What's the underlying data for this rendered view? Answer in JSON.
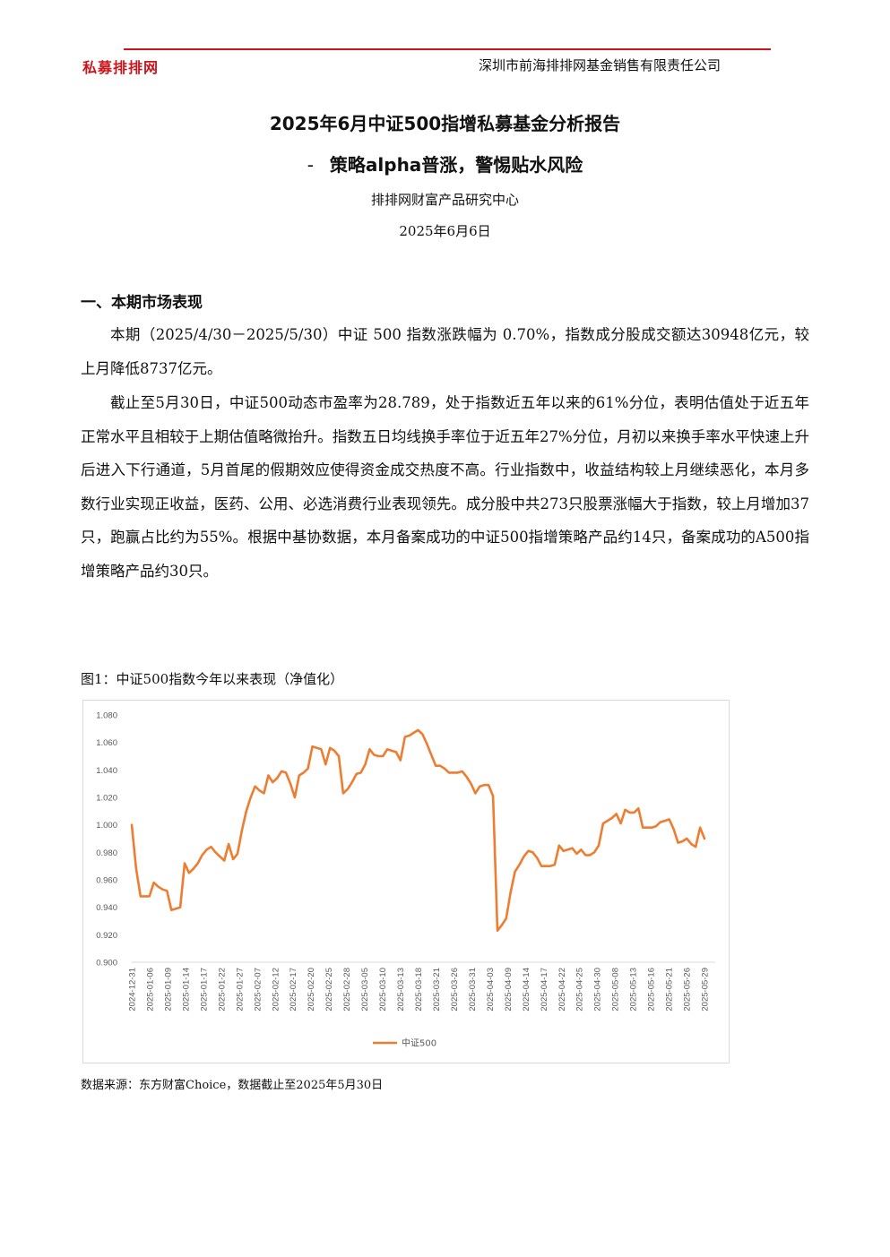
{
  "header": {
    "logo_text": "私募排排网",
    "company": "深圳市前海排排网基金销售有限责任公司",
    "accent_color": "#c8161d"
  },
  "report": {
    "title": "2025年6月中证500指增私募基金分析报告",
    "subtitle_dash": "-",
    "subtitle": "策略alpha普涨，警惕贴水风险",
    "org": "排排网财富产品研究中心",
    "date": "2025年6月6日"
  },
  "section1": {
    "heading": "一、本期市场表现",
    "para1": "本期（2025/4/30－2025/5/30）中证 500 指数涨跌幅为 0.70%，指数成分股成交额达30948亿元，较上月降低8737亿元。",
    "para2": "截止至5月30日，中证500动态市盈率为28.789，处于指数近五年以来的61%分位，表明估值处于近五年正常水平且相较于上期估值略微抬升。指数五日均线换手率位于近五年27%分位，月初以来换手率水平快速上升后进入下行通道，5月首尾的假期效应使得资金成交热度不高。行业指数中，收益结构较上月继续恶化，本月多数行业实现正收益，医药、公用、必选消费行业表现领先。成分股中共273只股票涨幅大于指数，较上月增加37只，跑赢占比约为55%。根据中基协数据，本月备案成功的中证500指增策略产品约14只，备案成功的A500指增策略产品约30只。"
  },
  "figure": {
    "caption": "图1：中证500指数今年以来表现（净值化）",
    "source": "数据来源：东方财富Choice，数据截止至2025年5月30日"
  },
  "chart_data": {
    "type": "line",
    "title": "",
    "xlabel": "",
    "ylabel": "",
    "ylim": [
      0.9,
      1.08
    ],
    "yticks": [
      "0.900",
      "0.920",
      "0.940",
      "0.960",
      "0.980",
      "1.000",
      "1.020",
      "1.040",
      "1.060",
      "1.080"
    ],
    "xticks": [
      "2024-12-31",
      "2025-01-06",
      "2025-01-09",
      "2025-01-14",
      "2025-01-17",
      "2025-01-22",
      "2025-01-27",
      "2025-02-07",
      "2025-02-12",
      "2025-02-17",
      "2025-02-20",
      "2025-02-25",
      "2025-02-28",
      "2025-03-05",
      "2025-03-10",
      "2025-03-13",
      "2025-03-18",
      "2025-03-21",
      "2025-03-26",
      "2025-03-31",
      "2025-04-03",
      "2025-04-09",
      "2025-04-14",
      "2025-04-17",
      "2025-04-22",
      "2025-04-25",
      "2025-04-30",
      "2025-05-08",
      "2025-05-13",
      "2025-05-16",
      "2025-05-21",
      "2025-05-26",
      "2025-05-29"
    ],
    "grid": false,
    "legend_position": "bottom",
    "series": [
      {
        "name": "中证500",
        "color": "#ed7d31",
        "values": [
          1.0,
          0.968,
          0.948,
          0.948,
          0.948,
          0.958,
          0.955,
          0.953,
          0.952,
          0.938,
          0.939,
          0.94,
          0.972,
          0.965,
          0.968,
          0.972,
          0.978,
          0.982,
          0.984,
          0.98,
          0.977,
          0.974,
          0.986,
          0.975,
          0.979,
          0.996,
          1.01,
          1.02,
          1.028,
          1.025,
          1.023,
          1.036,
          1.031,
          1.034,
          1.039,
          1.038,
          1.03,
          1.02,
          1.036,
          1.038,
          1.041,
          1.057,
          1.056,
          1.055,
          1.044,
          1.056,
          1.054,
          1.05,
          1.023,
          1.026,
          1.031,
          1.037,
          1.038,
          1.044,
          1.055,
          1.051,
          1.05,
          1.05,
          1.055,
          1.054,
          1.053,
          1.047,
          1.064,
          1.065,
          1.067,
          1.069,
          1.066,
          1.059,
          1.051,
          1.043,
          1.043,
          1.041,
          1.038,
          1.038,
          1.038,
          1.039,
          1.035,
          1.03,
          1.023,
          1.028,
          1.029,
          1.029,
          1.021,
          0.923,
          0.927,
          0.932,
          0.951,
          0.966,
          0.971,
          0.977,
          0.981,
          0.98,
          0.976,
          0.97,
          0.97,
          0.97,
          0.971,
          0.985,
          0.981,
          0.982,
          0.983,
          0.979,
          0.982,
          0.978,
          0.978,
          0.98,
          0.985,
          1.001,
          1.003,
          1.005,
          1.008,
          1.001,
          1.011,
          1.009,
          1.009,
          1.012,
          0.998,
          0.998,
          0.998,
          0.999,
          1.002,
          1.003,
          1.004,
          0.997,
          0.987,
          0.988,
          0.99,
          0.986,
          0.984,
          0.998,
          0.99
        ]
      }
    ]
  }
}
